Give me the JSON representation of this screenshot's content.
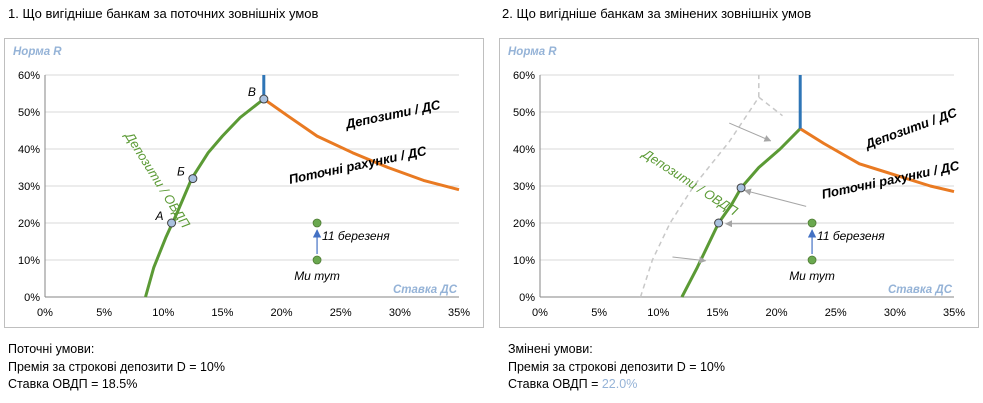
{
  "panels": [
    {
      "title": "1. Що вигідніше банкам за поточних зовнішніх умов",
      "conditions": {
        "heading": "Поточні умови:",
        "line1": "Премія за строкові депозити D = 10%",
        "line2_label": "Ставка ОВДП = ",
        "line2_value": "18.5%"
      }
    },
    {
      "title": "2. Що вигідніше банкам за змінених зовнішніх умов",
      "conditions": {
        "heading": "Змінені умови:",
        "line1": "Премія за строкові депозити D = 10%",
        "line2_label": "Ставка ОВДП = ",
        "line2_value": "22.0%"
      }
    }
  ],
  "colors": {
    "green": "#5b9a35",
    "orange": "#e97a22",
    "blue": "#2e75b6",
    "marker_fill": "#a9c1df",
    "green_point": "#6aa84f",
    "dashed": "#c8c8c8",
    "axis_title": "#95b3d7",
    "grid": "#d9d9d9",
    "arrow_blue": "#4472c4",
    "arrow_grey": "#a6a6a6"
  },
  "chart_data": [
    {
      "type": "line",
      "title": "1. Що вигідніше банкам за поточних зовнішніх умов",
      "xlabel": "Ставка ДС",
      "ylabel": "Норма R",
      "xlim": [
        0,
        35
      ],
      "ylim": [
        0,
        60
      ],
      "x_ticks": [
        "0%",
        "5%",
        "10%",
        "15%",
        "20%",
        "25%",
        "30%",
        "35%"
      ],
      "y_ticks": [
        "0%",
        "10%",
        "20%",
        "30%",
        "40%",
        "50%",
        "60%"
      ],
      "series": [
        {
          "name": "Депозити / ОВДП",
          "color": "green",
          "points": [
            [
              8.5,
              0
            ],
            [
              9.2,
              8
            ],
            [
              10.2,
              16
            ],
            [
              11.2,
              23
            ],
            [
              12.4,
              32
            ],
            [
              13.8,
              39
            ],
            [
              15.0,
              43.5
            ],
            [
              16.5,
              48.5
            ],
            [
              18.5,
              53.5
            ]
          ]
        },
        {
          "name": "Депозити / ДС",
          "color": "orange",
          "points": [
            [
              18.5,
              53.5
            ],
            [
              20.5,
              49
            ],
            [
              23,
              43.5
            ],
            [
              26,
              39
            ],
            [
              29,
              35
            ],
            [
              32,
              31.5
            ],
            [
              35,
              29
            ]
          ]
        },
        {
          "name": "",
          "color": "blue",
          "points": [
            [
              18.5,
              53.5
            ],
            [
              18.5,
              60
            ]
          ]
        }
      ],
      "labeled_points": [
        {
          "label": "A",
          "x": 10.7,
          "y": 20
        },
        {
          "label": "Б",
          "x": 12.5,
          "y": 32
        },
        {
          "label": "B",
          "x": 18.5,
          "y": 53.5
        }
      ],
      "move_points": {
        "from": [
          23,
          10
        ],
        "to": [
          23,
          20
        ],
        "from_label": "Ми тут",
        "to_label": "11 березеня"
      },
      "annotations": [
        {
          "text": "Депозити / ОВДП",
          "x": 9.2,
          "y": 31,
          "angle": -58,
          "color": "green",
          "style": "italic"
        },
        {
          "text": "Депозити / ДС",
          "x": 29.5,
          "y": 48.2,
          "angle": 12,
          "style": "bold-italic"
        },
        {
          "text": "Поточні рахунки / ДС",
          "x": 26.5,
          "y": 34.5,
          "angle": 12,
          "style": "bold-italic"
        }
      ]
    },
    {
      "type": "line",
      "title": "2. Що вигідніше банкам за змінених зовнішніх умов",
      "xlabel": "Ставка ДС",
      "ylabel": "Норма R",
      "xlim": [
        0,
        35
      ],
      "ylim": [
        0,
        60
      ],
      "x_ticks": [
        "0%",
        "5%",
        "10%",
        "15%",
        "20%",
        "25%",
        "30%",
        "35%"
      ],
      "y_ticks": [
        "0%",
        "10%",
        "20%",
        "30%",
        "40%",
        "50%",
        "60%"
      ],
      "series": [
        {
          "name": "Депозити / ОВДП",
          "color": "green",
          "points": [
            [
              12,
              0
            ],
            [
              13.3,
              8
            ],
            [
              14.5,
              16
            ],
            [
              15.1,
              20
            ],
            [
              16.2,
              25
            ],
            [
              17,
              29.5
            ],
            [
              18.5,
              35
            ],
            [
              20.3,
              40
            ],
            [
              22,
              45.5
            ]
          ]
        },
        {
          "name": "Депозити / ДС",
          "color": "orange",
          "points": [
            [
              22,
              45.5
            ],
            [
              24,
              41.5
            ],
            [
              27,
              36
            ],
            [
              30,
              33
            ],
            [
              33,
              30
            ],
            [
              35,
              28.5
            ]
          ]
        },
        {
          "name": "",
          "color": "blue",
          "points": [
            [
              22,
              45.5
            ],
            [
              22,
              60
            ]
          ]
        },
        {
          "name": "",
          "color": "dashed",
          "points": [
            [
              8.5,
              0
            ],
            [
              9.5,
              10
            ],
            [
              11,
              20
            ],
            [
              13,
              30
            ],
            [
              16,
              42
            ],
            [
              18.5,
              54
            ],
            [
              18.5,
              60
            ]
          ]
        },
        {
          "name": "",
          "color": "dashed",
          "points": [
            [
              18.5,
              54
            ],
            [
              20.5,
              49
            ]
          ]
        }
      ],
      "labeled_points": [
        {
          "label": "",
          "x": 15.1,
          "y": 20
        },
        {
          "label": "",
          "x": 17,
          "y": 29.5
        }
      ],
      "move_points": {
        "from": [
          23,
          10
        ],
        "to": [
          23,
          20
        ],
        "from_label": "Ми тут",
        "to_label": "11 березеня"
      },
      "grey_arrows": [
        {
          "from": [
            16.0,
            47.0
          ],
          "to": [
            19.5,
            42.2
          ]
        },
        {
          "from": [
            22.5,
            24.5
          ],
          "to": [
            17.3,
            28.8
          ]
        },
        {
          "from": [
            22.6,
            19.8
          ],
          "to": [
            15.7,
            19.8
          ]
        },
        {
          "from": [
            11.2,
            10.8
          ],
          "to": [
            14.0,
            9.8
          ]
        }
      ],
      "annotations": [
        {
          "text": "Депозити / ОВДП",
          "x": 12.5,
          "y": 30,
          "angle": -33,
          "color": "green",
          "style": "italic"
        },
        {
          "text": "Депозити / ДС",
          "x": 31.5,
          "y": 44.5,
          "angle": 20,
          "style": "bold-italic"
        },
        {
          "text": "Поточні рахунки / ДС",
          "x": 29.7,
          "y": 30.5,
          "angle": 12,
          "style": "bold-italic"
        }
      ]
    }
  ]
}
